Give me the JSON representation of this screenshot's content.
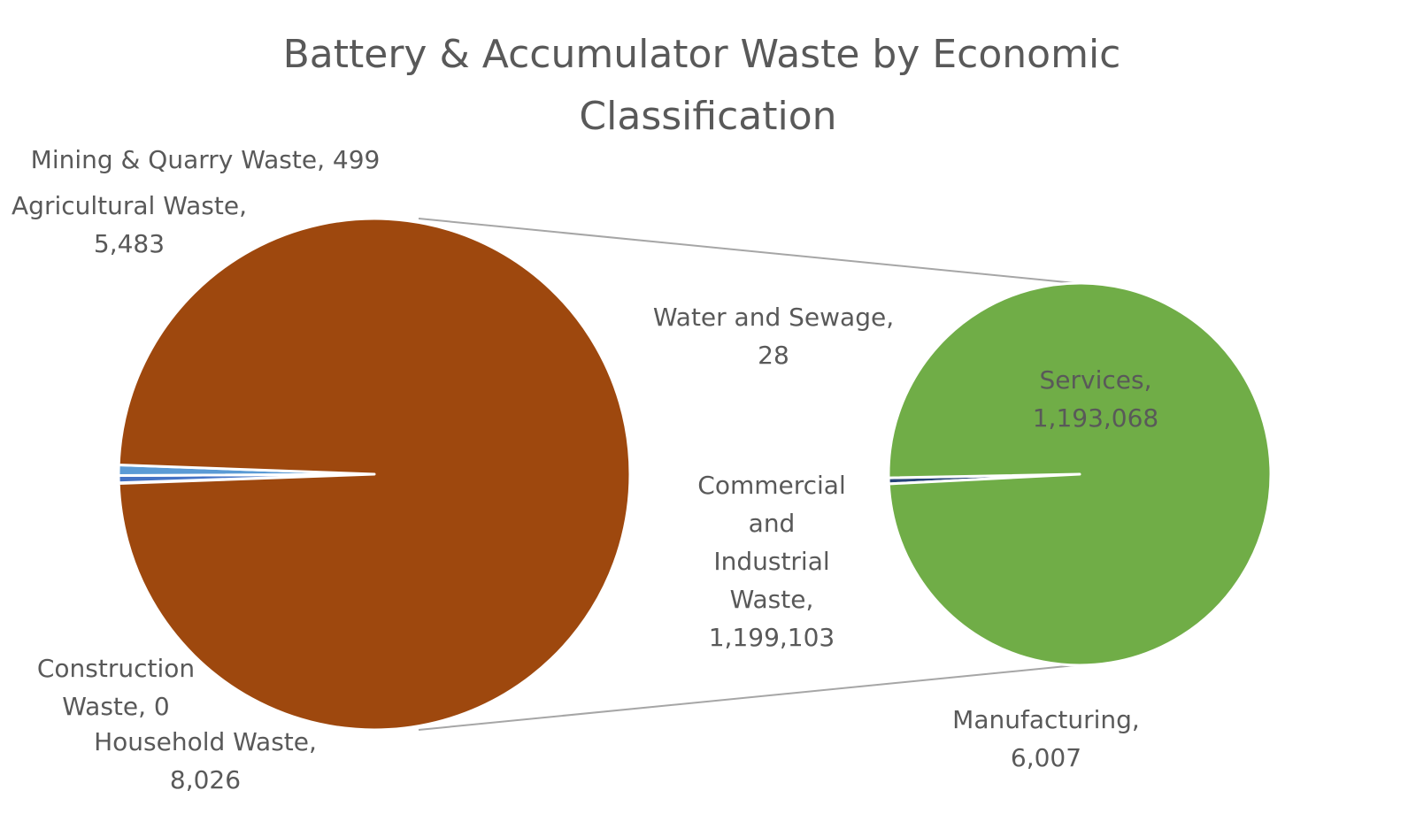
{
  "chart_data": {
    "type": "pie",
    "title": "Battery & Accumulator  Waste by Economic Classification",
    "title_lines": [
      "Battery & Accumulator  Waste by Economic",
      "Classification"
    ],
    "primary_pie": {
      "slices": [
        {
          "name": "Mining & Quarry Waste",
          "value": 499,
          "color": "#a5a5a5",
          "label_lines": [
            "Mining & Quarry Waste, 499"
          ]
        },
        {
          "name": "Agricultural Waste",
          "value": 5483,
          "color": "#4472c4",
          "label_lines": [
            "Agricultural Waste,",
            "5,483"
          ]
        },
        {
          "name": "Construction Waste",
          "value": 0,
          "color": "#ffc000",
          "label_lines": [
            "Construction",
            "Waste, 0"
          ]
        },
        {
          "name": "Household Waste",
          "value": 8026,
          "color": "#5b9bd5",
          "label_lines": [
            "Household Waste,",
            "8,026"
          ]
        },
        {
          "name": "Commercial and Industrial Waste",
          "value": 1199103,
          "color": "#9e480e",
          "label_lines": [
            "Commercial",
            "and",
            "Industrial",
            "Waste,",
            "1,199,103"
          ]
        }
      ]
    },
    "secondary_pie": {
      "parent": "Commercial and Industrial Waste",
      "slices": [
        {
          "name": "Water and Sewage",
          "value": 28,
          "color": "#264478",
          "label_lines": [
            "Water and Sewage,",
            "28"
          ]
        },
        {
          "name": "Manufacturing",
          "value": 6007,
          "color": "#264478",
          "label_lines": [
            "Manufacturing,",
            "6,007"
          ]
        },
        {
          "name": "Services",
          "value": 1193068,
          "color": "#70ad47",
          "label_lines": [
            "Services,",
            "1,193,068"
          ]
        }
      ]
    },
    "legend": "none"
  }
}
